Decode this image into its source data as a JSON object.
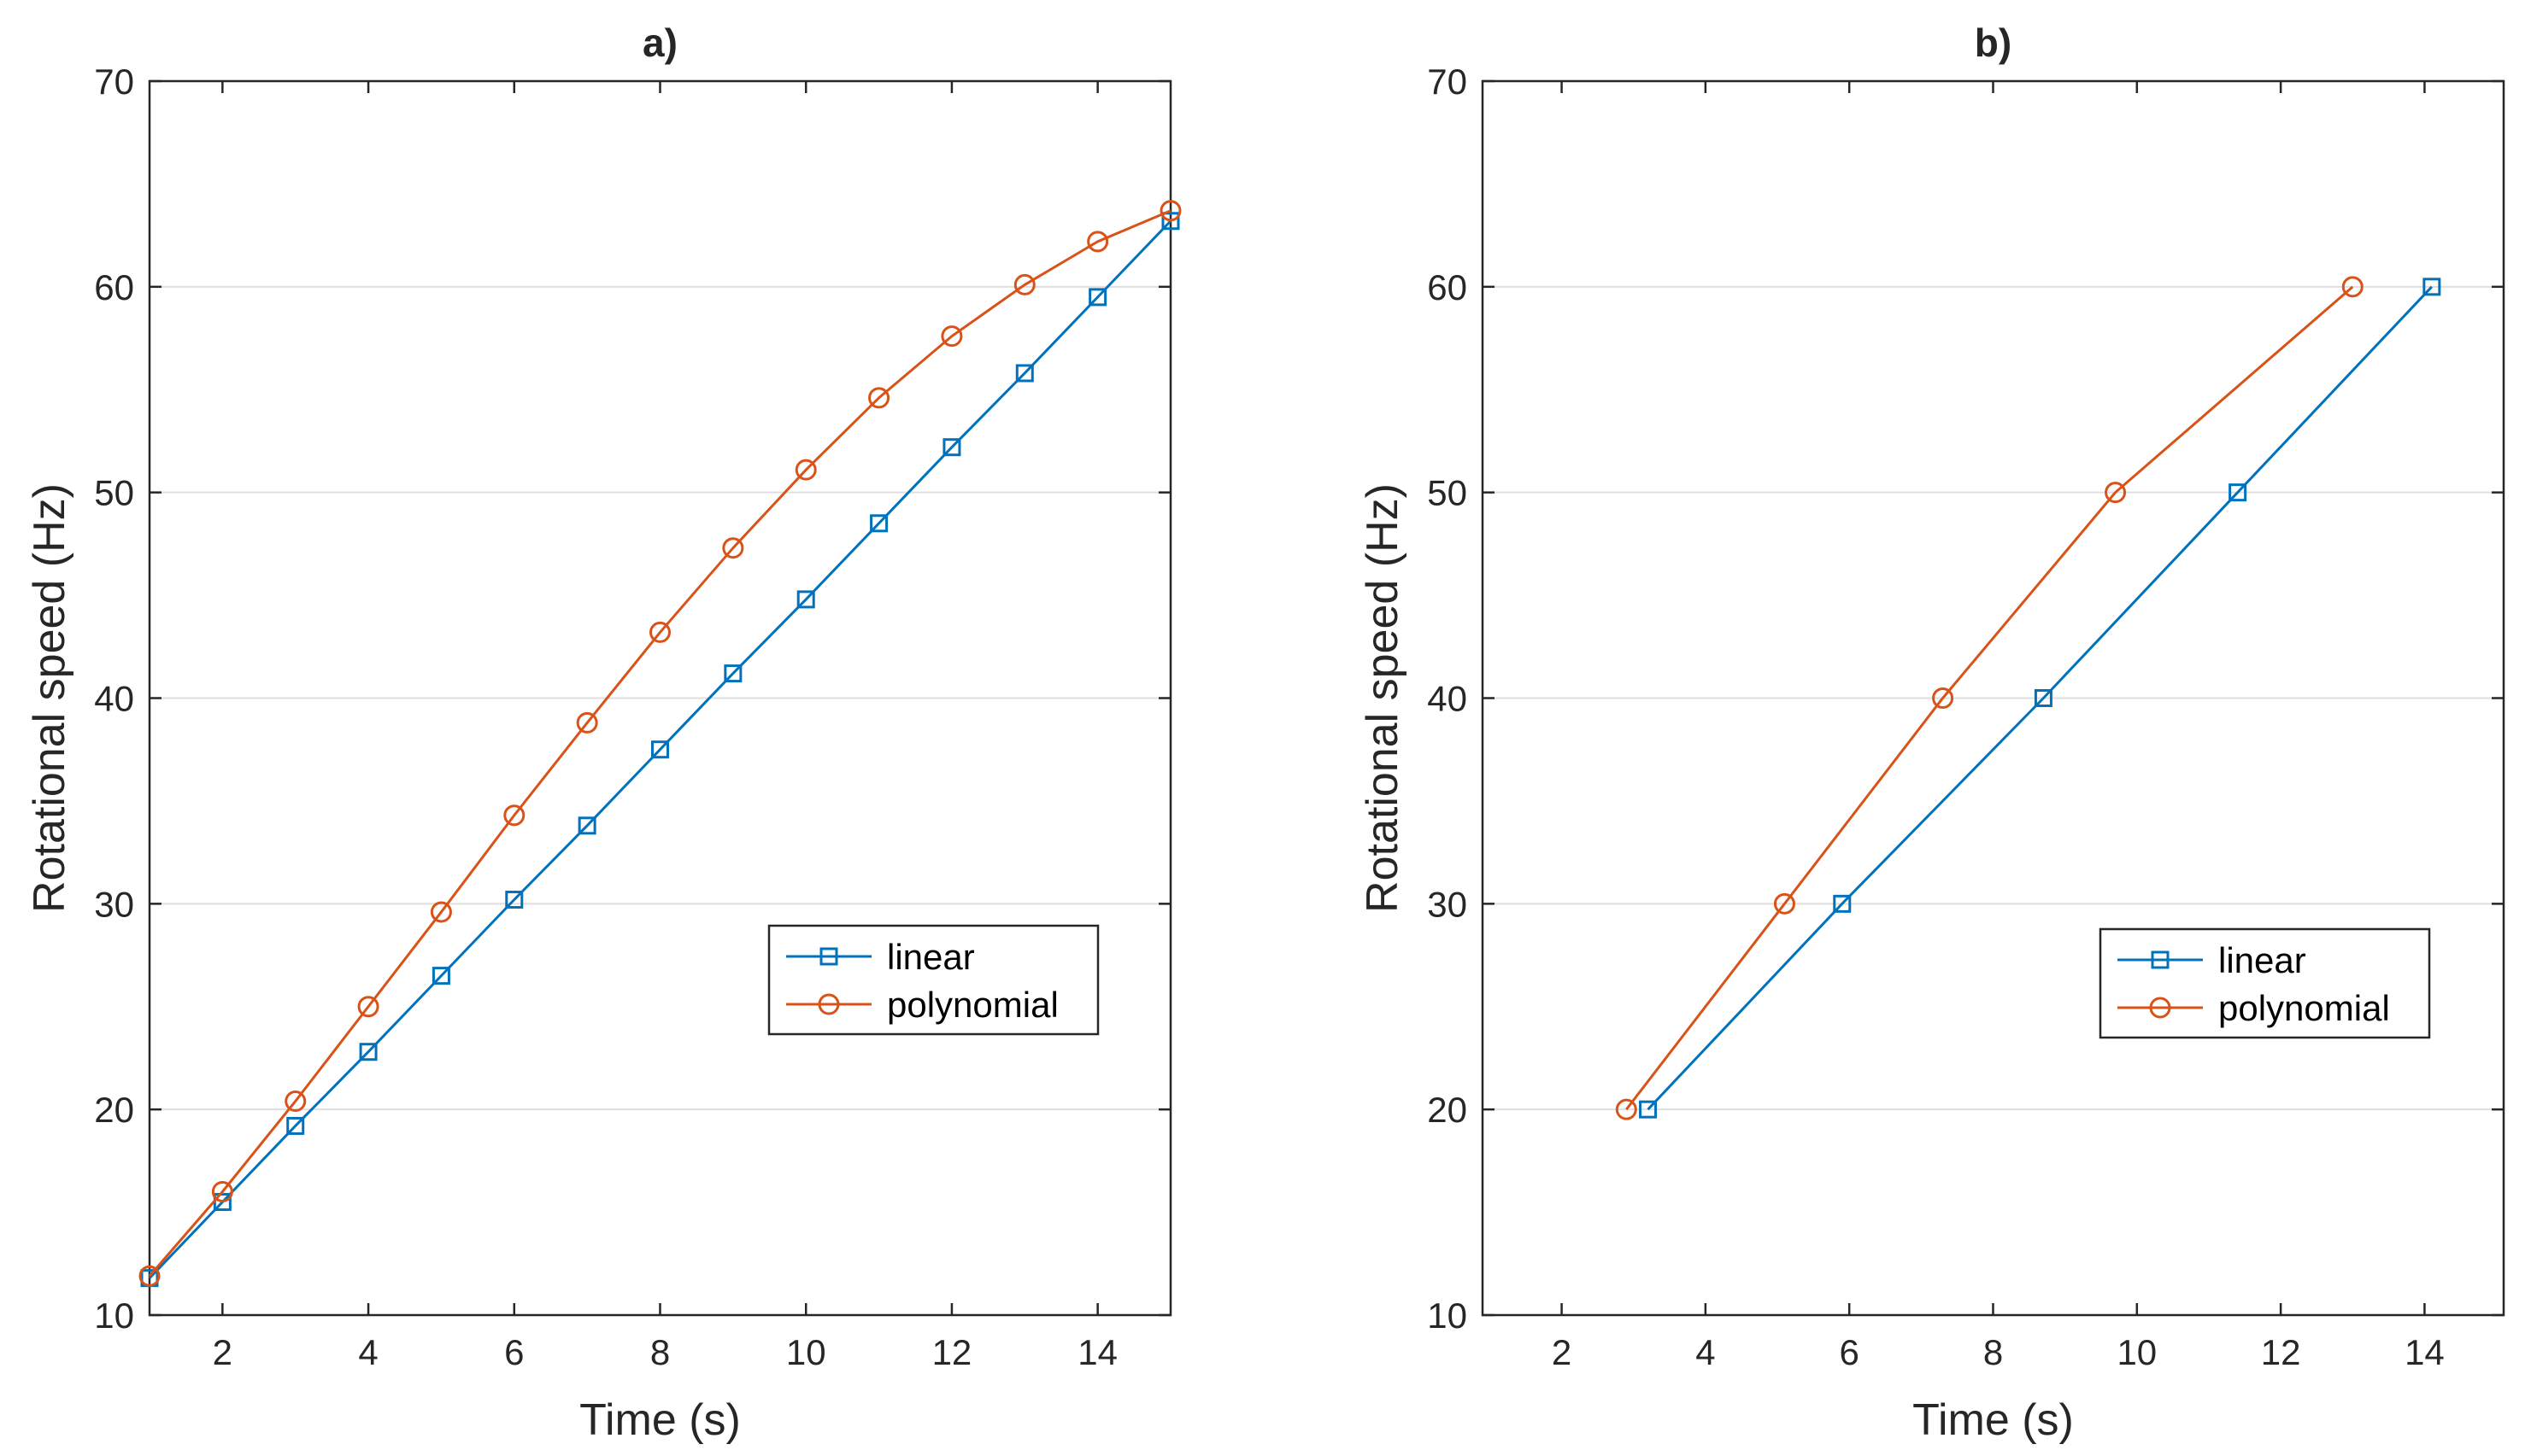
{
  "colors": {
    "linear": "#0072BD",
    "polynomial": "#D95319",
    "axis": "#262626",
    "grid": "#dfdfdf"
  },
  "chart_data": [
    {
      "type": "line",
      "title": "a)",
      "xlabel": "Time (s)",
      "ylabel": "Rotational speed (Hz)",
      "xlim": [
        1,
        15
      ],
      "ylim": [
        10,
        70
      ],
      "xticks": [
        2,
        4,
        6,
        8,
        10,
        12,
        14
      ],
      "yticks": [
        10,
        20,
        30,
        40,
        50,
        60,
        70
      ],
      "grid": "y",
      "legend": {
        "position": "right-lower",
        "entries": [
          "linear",
          "polynomial"
        ]
      },
      "series": [
        {
          "name": "linear",
          "marker": "square",
          "x": [
            1,
            2,
            3,
            4,
            5,
            6,
            7,
            8,
            9,
            10,
            11,
            12,
            13,
            14,
            15
          ],
          "y": [
            11.8,
            15.5,
            19.2,
            22.8,
            26.5,
            30.2,
            33.8,
            37.5,
            41.2,
            44.8,
            48.5,
            52.2,
            55.8,
            59.5,
            63.2
          ]
        },
        {
          "name": "polynomial",
          "marker": "circle",
          "x": [
            1,
            2,
            3,
            4,
            5,
            6,
            7,
            8,
            9,
            10,
            11,
            12,
            13,
            14,
            15
          ],
          "y": [
            11.9,
            16.0,
            20.4,
            25.0,
            29.6,
            34.3,
            38.8,
            43.2,
            47.3,
            51.1,
            54.6,
            57.6,
            60.1,
            62.2,
            63.7
          ]
        }
      ]
    },
    {
      "type": "line",
      "title": "b)",
      "xlabel": "Time (s)",
      "ylabel": "Rotational speed (Hz)",
      "xlim": [
        0.9,
        15.1
      ],
      "ylim": [
        10,
        70
      ],
      "xticks": [
        2,
        4,
        6,
        8,
        10,
        12,
        14
      ],
      "yticks": [
        10,
        20,
        30,
        40,
        50,
        60,
        70
      ],
      "grid": "y",
      "legend": {
        "position": "right-lower",
        "entries": [
          "linear",
          "polynomial"
        ]
      },
      "series": [
        {
          "name": "linear",
          "marker": "square",
          "x": [
            3.2,
            5.9,
            8.7,
            11.4,
            14.1
          ],
          "y": [
            20,
            30,
            40,
            50,
            60
          ]
        },
        {
          "name": "polynomial",
          "marker": "circle",
          "x": [
            2.9,
            5.1,
            7.3,
            9.7,
            13.0
          ],
          "y": [
            20,
            30,
            40,
            50,
            60
          ]
        }
      ]
    }
  ]
}
